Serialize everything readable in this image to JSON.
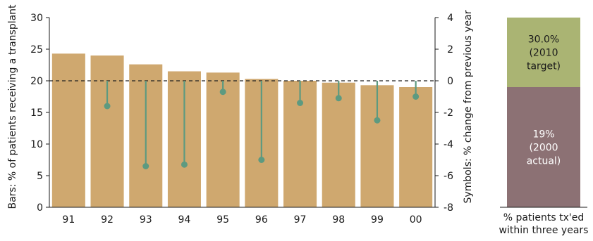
{
  "chart_data": [
    {
      "type": "bar",
      "categories": [
        "91",
        "92",
        "93",
        "94",
        "95",
        "96",
        "97",
        "98",
        "99",
        "00"
      ],
      "series": [
        {
          "name": "% of patients receiving a transplant",
          "axis": "left",
          "values": [
            24.3,
            24.0,
            22.6,
            21.5,
            21.3,
            20.3,
            20.0,
            19.7,
            19.3,
            19.0
          ]
        },
        {
          "name": "% change from previous year",
          "axis": "right",
          "mark": "lollipop",
          "values": [
            null,
            -1.6,
            -5.4,
            -5.3,
            -0.7,
            -5.0,
            -1.4,
            -1.1,
            -2.5,
            -1.0
          ]
        }
      ],
      "ylabel": "Bars: % of patients receiving a transplant",
      "y2label": "Symbols: % change from previous year",
      "ylim": [
        0,
        30
      ],
      "y2lim": [
        -8,
        4
      ],
      "yticks": [
        "0",
        "5",
        "10",
        "15",
        "20",
        "25",
        "30"
      ],
      "y2ticks": [
        "-8",
        "-6",
        "-4",
        "-2",
        "0",
        "2",
        "4"
      ],
      "reference_line": {
        "value": 0,
        "axis": "right",
        "style": "dashed"
      },
      "colors": {
        "bar": "#cfa86f",
        "symbol": "#5d9a80",
        "axis": "#1a1a1a"
      }
    },
    {
      "type": "bar",
      "stacked": true,
      "ylim": [
        0,
        30
      ],
      "xlabel": [
        "% patients tx'ed",
        "within three years"
      ],
      "segments": [
        {
          "value": 19,
          "lines": [
            "19%",
            "(2000",
            "actual)"
          ],
          "color": "#8c7174"
        },
        {
          "value": 11,
          "lines": [
            "30.0%",
            "(2010",
            "target)"
          ],
          "color": "#aab473"
        }
      ]
    }
  ]
}
